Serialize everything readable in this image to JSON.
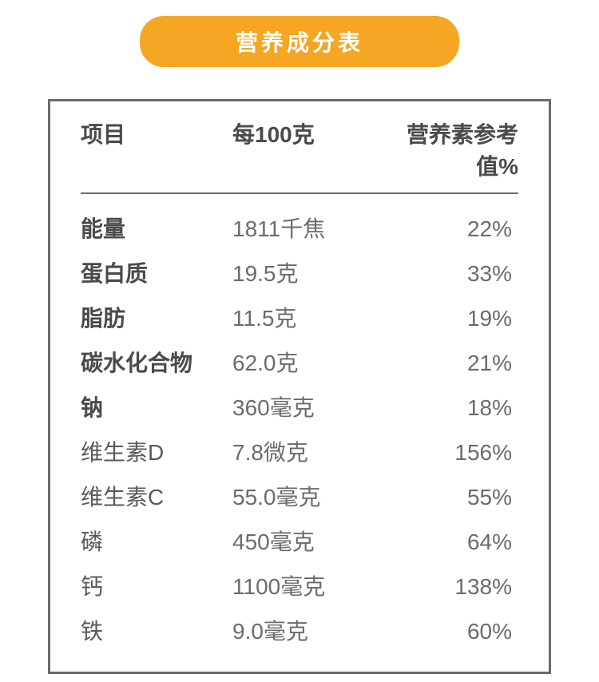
{
  "title": "营养成分表",
  "headers": {
    "name": "项目",
    "amount": "每100克",
    "nrv": "营养素参考值%"
  },
  "rows": [
    {
      "name": "能量",
      "amount": "1811千焦",
      "nrv": "22%",
      "bold": true
    },
    {
      "name": "蛋白质",
      "amount": "19.5克",
      "nrv": "33%",
      "bold": true
    },
    {
      "name": "脂肪",
      "amount": "11.5克",
      "nrv": "19%",
      "bold": true
    },
    {
      "name": "碳水化合物",
      "amount": "62.0克",
      "nrv": "21%",
      "bold": true
    },
    {
      "name": "钠",
      "amount": "360毫克",
      "nrv": "18%",
      "bold": true
    },
    {
      "name": "维生素D",
      "amount": "7.8微克",
      "nrv": "156%",
      "bold": false
    },
    {
      "name": "维生素C",
      "amount": "55.0毫克",
      "nrv": "55%",
      "bold": false
    },
    {
      "name": "磷",
      "amount": "450毫克",
      "nrv": "64%",
      "bold": false
    },
    {
      "name": "钙",
      "amount": "1100毫克",
      "nrv": "138%",
      "bold": false
    },
    {
      "name": "铁",
      "amount": "9.0毫克",
      "nrv": "60%",
      "bold": false
    }
  ],
  "colors": {
    "badge_bg": "#f5a623",
    "badge_text": "#ffffff",
    "border": "#6b6b6b",
    "header_text": "#4a4a4a",
    "cell_text": "#6b6b6b",
    "bold_text": "#4a4a4a",
    "background": "#ffffff"
  }
}
